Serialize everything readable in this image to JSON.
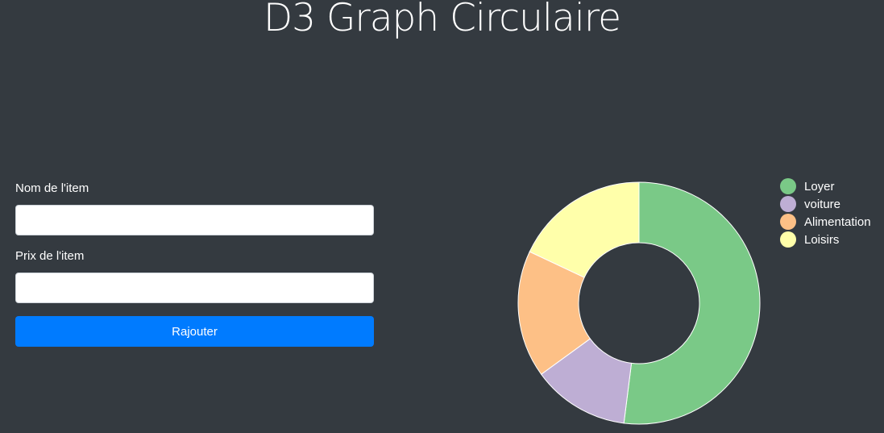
{
  "header": {
    "title": "D3 Graph Circulaire"
  },
  "form": {
    "name_label": "Nom de l'item",
    "name_value": "",
    "price_label": "Prix de l'item",
    "price_value": "",
    "submit_label": "Rajouter",
    "submit_color": "#007bff"
  },
  "chart_data": {
    "type": "pie",
    "donut": true,
    "legend_position": "right",
    "categories": [
      "Loyer",
      "voiture",
      "Alimentation",
      "Loisirs"
    ],
    "values": [
      52,
      13,
      17,
      18
    ],
    "colors": [
      "#7ac987",
      "#beaed4",
      "#fdc086",
      "#ffffaa"
    ],
    "slice_stroke": "#ffffff"
  },
  "colors": {
    "background": "#343a40",
    "text": "#ffffff"
  }
}
